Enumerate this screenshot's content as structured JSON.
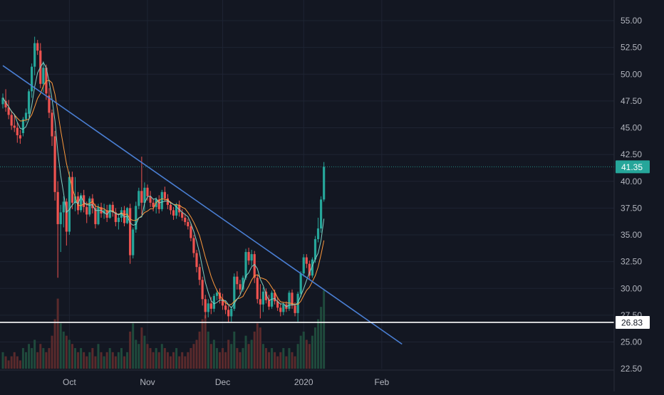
{
  "colors": {
    "background": "#131722",
    "grid": "#1e2433",
    "axis_text": "#b2b5be",
    "up": "#26a69a",
    "down": "#ef5350",
    "vol_up": "#1f4a3c",
    "vol_down": "#5a2a2c",
    "trendline": "#4a7fd4",
    "support": "#ffffff",
    "ma_fast": "#7fcfc4",
    "ma_slow": "#ff9a3c",
    "price_tag": "#26a69a",
    "hline_tag_bg": "#ffffff",
    "hline_tag_text": "#131722"
  },
  "chart_data": {
    "type": "candlestick",
    "y_axis": {
      "min": 23.5,
      "max": 56.5,
      "ticks": [
        "55.00",
        "52.50",
        "50.00",
        "47.50",
        "45.00",
        "42.50",
        "40.00",
        "37.50",
        "35.00",
        "32.50",
        "30.00",
        "27.50",
        "25.00",
        "22.50"
      ],
      "tick_values": [
        55,
        52.5,
        50,
        47.5,
        45,
        42.5,
        40,
        37.5,
        35,
        32.5,
        30,
        27.5,
        25,
        22.5
      ]
    },
    "x_axis": {
      "labels": [
        {
          "text": "Oct",
          "bar": 23
        },
        {
          "text": "Nov",
          "bar": 50
        },
        {
          "text": "Dec",
          "bar": 76
        },
        {
          "text": "2020",
          "bar": 104
        },
        {
          "text": "Feb",
          "bar": 131
        }
      ]
    },
    "last_price": "41.35",
    "last_price_value": 41.35,
    "horizontal_line": {
      "value": 26.83,
      "label": "26.83"
    },
    "trendline": {
      "start": {
        "bar": 0,
        "price": 50.8
      },
      "end": {
        "bar": 138,
        "price": 24.8
      }
    },
    "candles": [
      [
        47.2,
        48.2,
        46.8,
        47.8
      ],
      [
        47.5,
        48.6,
        46.5,
        46.9
      ],
      [
        46.9,
        47.6,
        45.8,
        46.2
      ],
      [
        46.2,
        46.6,
        44.8,
        45.2
      ],
      [
        45.2,
        46.3,
        44.6,
        45.0
      ],
      [
        45.0,
        45.5,
        43.6,
        44.3
      ],
      [
        44.3,
        44.8,
        43.5,
        44.0
      ],
      [
        44.5,
        46.0,
        44.2,
        45.8
      ],
      [
        45.8,
        46.8,
        45.5,
        46.4
      ],
      [
        46.3,
        48.6,
        46.0,
        48.4
      ],
      [
        48.4,
        51.0,
        47.8,
        50.7
      ],
      [
        50.7,
        53.5,
        49.9,
        52.9
      ],
      [
        52.9,
        53.2,
        51.8,
        52.2
      ],
      [
        52.2,
        52.9,
        48.7,
        49.1
      ],
      [
        49.1,
        51.2,
        48.3,
        50.6
      ],
      [
        50.6,
        50.9,
        47.6,
        48.2
      ],
      [
        48.0,
        48.7,
        45.9,
        46.4
      ],
      [
        46.4,
        46.7,
        43.3,
        44.2
      ],
      [
        44.2,
        44.7,
        38.2,
        39.0
      ],
      [
        39.0,
        40.0,
        31.0,
        36.0
      ],
      [
        36.0,
        37.8,
        33.4,
        37.1
      ],
      [
        37.1,
        38.6,
        35.7,
        38.1
      ],
      [
        38.1,
        38.4,
        34.0,
        35.3
      ],
      [
        35.3,
        40.9,
        35.0,
        40.4
      ],
      [
        40.4,
        40.9,
        37.4,
        38.0
      ],
      [
        38.0,
        40.4,
        37.2,
        38.6
      ],
      [
        38.6,
        39.0,
        36.9,
        37.3
      ],
      [
        37.3,
        38.9,
        37.1,
        38.7
      ],
      [
        38.7,
        39.2,
        37.1,
        37.6
      ],
      [
        37.6,
        38.1,
        36.1,
        36.9
      ],
      [
        36.9,
        38.6,
        36.7,
        38.4
      ],
      [
        38.4,
        38.8,
        37.0,
        37.5
      ],
      [
        37.5,
        37.9,
        35.6,
        36.0
      ],
      [
        36.0,
        37.9,
        35.9,
        37.6
      ],
      [
        37.6,
        38.0,
        36.6,
        37.0
      ],
      [
        37.0,
        37.9,
        36.5,
        37.3
      ],
      [
        37.3,
        37.8,
        36.2,
        36.6
      ],
      [
        36.6,
        37.9,
        36.5,
        37.8
      ],
      [
        37.8,
        38.1,
        36.7,
        37.1
      ],
      [
        37.1,
        37.5,
        35.8,
        36.2
      ],
      [
        36.2,
        37.0,
        35.5,
        36.6
      ],
      [
        36.6,
        37.6,
        36.2,
        37.3
      ],
      [
        37.3,
        37.7,
        35.8,
        36.1
      ],
      [
        36.1,
        37.6,
        36.0,
        37.5
      ],
      [
        37.5,
        37.9,
        32.3,
        33.1
      ],
      [
        33.1,
        35.7,
        32.8,
        35.5
      ],
      [
        35.5,
        38.1,
        35.2,
        37.7
      ],
      [
        37.7,
        39.4,
        37.4,
        39.1
      ],
      [
        39.1,
        42.3,
        36.9,
        38.0
      ],
      [
        38.0,
        39.9,
        37.2,
        39.4
      ],
      [
        39.4,
        39.7,
        38.2,
        38.6
      ],
      [
        38.6,
        39.1,
        37.6,
        38.0
      ],
      [
        38.0,
        38.4,
        37.2,
        37.6
      ],
      [
        37.6,
        38.5,
        37.0,
        38.3
      ],
      [
        38.3,
        38.7,
        37.0,
        37.4
      ],
      [
        37.4,
        39.2,
        37.2,
        39.0
      ],
      [
        39.0,
        39.5,
        38.1,
        38.4
      ],
      [
        38.4,
        38.8,
        37.4,
        37.8
      ],
      [
        37.8,
        38.1,
        36.9,
        37.3
      ],
      [
        37.3,
        37.6,
        36.4,
        36.8
      ],
      [
        36.8,
        38.0,
        36.5,
        37.8
      ],
      [
        37.8,
        38.2,
        36.7,
        37.1
      ],
      [
        37.1,
        37.4,
        36.3,
        36.6
      ],
      [
        36.6,
        37.0,
        35.9,
        36.2
      ],
      [
        36.2,
        36.5,
        35.5,
        35.8
      ],
      [
        35.8,
        36.1,
        34.4,
        34.7
      ],
      [
        34.7,
        35.0,
        32.9,
        33.3
      ],
      [
        33.3,
        33.6,
        31.5,
        32.0
      ],
      [
        32.0,
        32.3,
        30.3,
        30.8
      ],
      [
        30.8,
        31.1,
        28.4,
        29.0
      ],
      [
        29.0,
        29.4,
        27.2,
        27.8
      ],
      [
        27.8,
        29.0,
        27.3,
        28.6
      ],
      [
        28.6,
        29.2,
        27.6,
        28.1
      ],
      [
        28.1,
        29.5,
        27.8,
        29.3
      ],
      [
        29.3,
        29.9,
        28.9,
        29.6
      ],
      [
        29.6,
        30.0,
        28.6,
        29.0
      ],
      [
        29.0,
        29.5,
        28.0,
        28.4
      ],
      [
        28.4,
        28.8,
        27.6,
        28.0
      ],
      [
        28.0,
        28.4,
        26.8,
        27.4
      ],
      [
        27.4,
        28.3,
        26.9,
        28.1
      ],
      [
        28.1,
        31.4,
        27.9,
        31.1
      ],
      [
        31.1,
        31.6,
        29.9,
        30.4
      ],
      [
        30.4,
        30.8,
        29.5,
        29.9
      ],
      [
        29.9,
        31.2,
        29.7,
        31.0
      ],
      [
        31.0,
        33.7,
        30.8,
        33.4
      ],
      [
        33.4,
        33.8,
        32.2,
        32.6
      ],
      [
        32.6,
        33.6,
        32.1,
        33.2
      ],
      [
        33.2,
        33.5,
        30.5,
        31.0
      ],
      [
        31.0,
        31.3,
        28.6,
        29.0
      ],
      [
        29.0,
        30.4,
        27.2,
        28.5
      ],
      [
        28.5,
        30.1,
        27.8,
        29.7
      ],
      [
        29.7,
        30.0,
        28.6,
        28.9
      ],
      [
        28.9,
        29.4,
        28.0,
        28.3
      ],
      [
        28.3,
        29.8,
        28.1,
        29.6
      ],
      [
        29.6,
        29.9,
        28.5,
        28.8
      ],
      [
        28.8,
        29.2,
        27.9,
        28.2
      ],
      [
        28.2,
        28.6,
        27.4,
        27.8
      ],
      [
        27.8,
        28.7,
        27.5,
        28.5
      ],
      [
        28.5,
        28.8,
        27.8,
        28.1
      ],
      [
        28.1,
        29.8,
        27.9,
        29.6
      ],
      [
        29.6,
        29.9,
        28.1,
        28.4
      ],
      [
        28.4,
        28.7,
        27.4,
        27.7
      ],
      [
        27.7,
        29.7,
        26.9,
        29.5
      ],
      [
        29.5,
        31.6,
        29.2,
        31.4
      ],
      [
        31.4,
        33.2,
        31.1,
        32.9
      ],
      [
        32.9,
        33.2,
        31.9,
        32.3
      ],
      [
        32.3,
        32.6,
        30.9,
        31.2
      ],
      [
        31.2,
        32.9,
        31.0,
        32.7
      ],
      [
        32.7,
        34.9,
        32.4,
        34.6
      ],
      [
        34.6,
        36.6,
        34.3,
        35.6
      ],
      [
        35.6,
        38.6,
        35.2,
        38.3
      ],
      [
        38.3,
        41.8,
        38.1,
        41.35
      ]
    ],
    "volumes": [
      4,
      3,
      2,
      3,
      4,
      3,
      2,
      5,
      4,
      6,
      5,
      7,
      4,
      6,
      5,
      4,
      5,
      8,
      12,
      17,
      11,
      9,
      8,
      7,
      6,
      5,
      4,
      5,
      4,
      3,
      4,
      5,
      3,
      6,
      4,
      3,
      4,
      5,
      4,
      3,
      4,
      5,
      3,
      4,
      9,
      11,
      7,
      6,
      10,
      8,
      6,
      5,
      4,
      5,
      4,
      6,
      5,
      4,
      3,
      4,
      5,
      3,
      4,
      3,
      4,
      5,
      6,
      7,
      9,
      12,
      13,
      9,
      6,
      7,
      5,
      4,
      5,
      4,
      7,
      6,
      9,
      5,
      4,
      5,
      8,
      6,
      7,
      9,
      11,
      10,
      6,
      5,
      4,
      5,
      4,
      3,
      4,
      5,
      3,
      5,
      4,
      3,
      6,
      8,
      9,
      7,
      6,
      8,
      10,
      12,
      15,
      19
    ]
  }
}
